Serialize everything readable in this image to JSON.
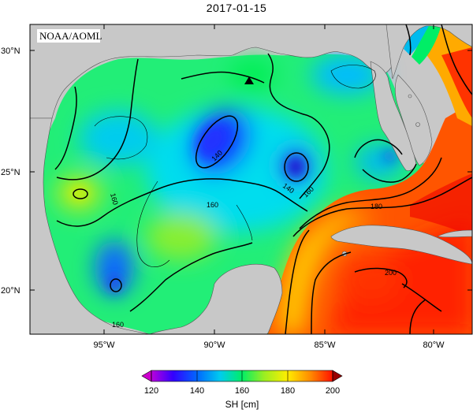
{
  "title": "2017-01-15",
  "credit": "NOAA/AOML",
  "marker": "triangle",
  "longitude_ticks": [
    "95°W",
    "90°W",
    "85°W",
    "80°W"
  ],
  "latitude_ticks": [
    "30°N",
    "25°N",
    "20°N"
  ],
  "contour_labels": [
    "140",
    "140",
    "160",
    "160",
    "160",
    "180",
    "200",
    "160"
  ],
  "colorbar": {
    "title": "SH [cm]",
    "tick_labels": [
      "120",
      "140",
      "160",
      "180",
      "200"
    ],
    "min": 120,
    "max": 200
  },
  "colors": {
    "land": "#c8c8c8",
    "low": "#cc00cc",
    "high": "#990000"
  }
}
